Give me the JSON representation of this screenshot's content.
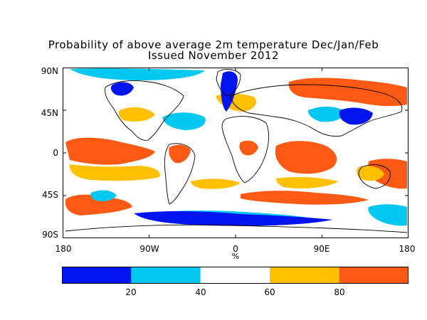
{
  "title": {
    "line1": "Probability of above average 2m temperature Dec/Jan/Feb",
    "line2": "Issued November 2012"
  },
  "axes": {
    "y_ticks": [
      "90N",
      "45N",
      "0",
      "45S",
      "90S"
    ],
    "y_values": [
      90,
      45,
      0,
      -45,
      -90
    ],
    "x_ticks": [
      "180",
      "90W",
      "0",
      "90E",
      "180"
    ],
    "x_values": [
      -180,
      -90,
      0,
      90,
      180
    ],
    "unit": "%"
  },
  "colorbar": {
    "bins": [
      {
        "range": [
          0,
          20
        ],
        "color": "#0014f0"
      },
      {
        "range": [
          20,
          40
        ],
        "color": "#00c8f0"
      },
      {
        "range": [
          40,
          60
        ],
        "color": "#ffffff"
      },
      {
        "range": [
          60,
          80
        ],
        "color": "#ffc000"
      },
      {
        "range": [
          80,
          100
        ],
        "color": "#ff5a14"
      }
    ],
    "tick_labels": [
      "20",
      "40",
      "60",
      "80"
    ],
    "tick_values": [
      20,
      40,
      60,
      80
    ]
  }
}
